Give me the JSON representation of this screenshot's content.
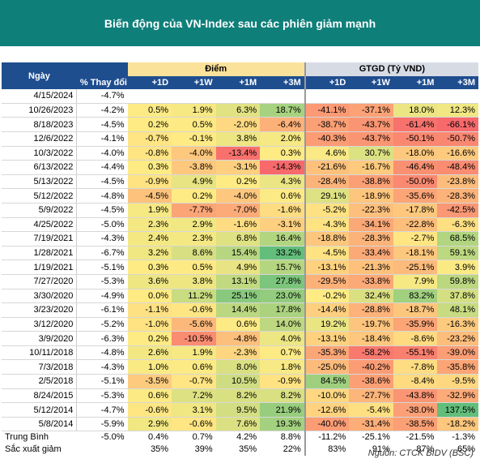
{
  "title": "Biến động của VN-Index sau các phiên giảm mạnh",
  "headers": {
    "date": "Ngày",
    "change": "% Thay đổi",
    "points_group": "Điểm",
    "value_group": "GTGD (Tỷ VND)",
    "periods": [
      "+1D",
      "+1W",
      "+1M",
      "+3M"
    ]
  },
  "rows": [
    {
      "date": "4/15/2024",
      "chg": "-4.7%",
      "p": [
        "",
        "",
        "",
        ""
      ],
      "v": [
        "",
        "",
        "",
        ""
      ]
    },
    {
      "date": "10/26/2023",
      "chg": "-4.2%",
      "p": [
        "0.5%",
        "1.9%",
        "6.3%",
        "18.7%"
      ],
      "v": [
        "-41.1%",
        "-37.1%",
        "18.0%",
        "12.3%"
      ]
    },
    {
      "date": "8/18/2023",
      "chg": "-4.5%",
      "p": [
        "0.2%",
        "0.5%",
        "-2.0%",
        "-6.4%"
      ],
      "v": [
        "-38.7%",
        "-43.7%",
        "-61.4%",
        "-66.1%"
      ]
    },
    {
      "date": "12/6/2022",
      "chg": "-4.1%",
      "p": [
        "-0.7%",
        "-0.1%",
        "3.8%",
        "2.0%"
      ],
      "v": [
        "-40.3%",
        "-43.7%",
        "-50.1%",
        "-50.7%"
      ]
    },
    {
      "date": "10/3/2022",
      "chg": "-4.0%",
      "p": [
        "-0.8%",
        "-4.0%",
        "-13.4%",
        "0.3%"
      ],
      "v": [
        "4.6%",
        "30.7%",
        "-18.0%",
        "-16.6%"
      ]
    },
    {
      "date": "6/13/2022",
      "chg": "-4.4%",
      "p": [
        "0.3%",
        "-3.8%",
        "-3.1%",
        "-14.3%"
      ],
      "v": [
        "-21.6%",
        "-16.7%",
        "-46.4%",
        "-48.4%"
      ]
    },
    {
      "date": "5/13/2022",
      "chg": "-4.5%",
      "p": [
        "-0.9%",
        "4.9%",
        "0.2%",
        "4.3%"
      ],
      "v": [
        "-28.4%",
        "-38.8%",
        "-50.0%",
        "-23.8%"
      ]
    },
    {
      "date": "5/12/2022",
      "chg": "-4.8%",
      "p": [
        "-4.5%",
        "0.2%",
        "-4.0%",
        "0.6%"
      ],
      "v": [
        "29.1%",
        "-18.9%",
        "-35.6%",
        "-28.3%"
      ]
    },
    {
      "date": "5/9/2022",
      "chg": "-4.5%",
      "p": [
        "1.9%",
        "-7.7%",
        "-7.0%",
        "-1.6%"
      ],
      "v": [
        "-5.2%",
        "-22.3%",
        "-17.8%",
        "-42.5%"
      ]
    },
    {
      "date": "4/25/2022",
      "chg": "-5.0%",
      "p": [
        "2.3%",
        "2.9%",
        "-1.6%",
        "-3.1%"
      ],
      "v": [
        "-4.3%",
        "-34.1%",
        "-22.8%",
        "-6.3%"
      ]
    },
    {
      "date": "7/19/2021",
      "chg": "-4.3%",
      "p": [
        "2.4%",
        "2.3%",
        "6.8%",
        "16.4%"
      ],
      "v": [
        "-18.8%",
        "-28.3%",
        "-2.7%",
        "68.5%"
      ]
    },
    {
      "date": "1/28/2021",
      "chg": "-6.7%",
      "p": [
        "3.2%",
        "8.6%",
        "15.4%",
        "33.2%"
      ],
      "v": [
        "-4.5%",
        "-33.4%",
        "-18.1%",
        "59.1%"
      ]
    },
    {
      "date": "1/19/2021",
      "chg": "-5.1%",
      "p": [
        "0.3%",
        "0.5%",
        "4.9%",
        "15.7%"
      ],
      "v": [
        "-13.1%",
        "-21.3%",
        "-25.1%",
        "3.9%"
      ]
    },
    {
      "date": "7/27/2020",
      "chg": "-5.3%",
      "p": [
        "3.6%",
        "3.8%",
        "13.1%",
        "27.8%"
      ],
      "v": [
        "-29.5%",
        "-33.8%",
        "7.9%",
        "59.8%"
      ]
    },
    {
      "date": "3/30/2020",
      "chg": "-4.9%",
      "p": [
        "0.0%",
        "11.2%",
        "25.1%",
        "23.0%"
      ],
      "v": [
        "-0.2%",
        "32.4%",
        "83.2%",
        "37.8%"
      ]
    },
    {
      "date": "3/23/2020",
      "chg": "-6.1%",
      "p": [
        "-1.1%",
        "-0.6%",
        "14.4%",
        "17.8%"
      ],
      "v": [
        "-14.4%",
        "-28.8%",
        "-18.7%",
        "48.1%"
      ]
    },
    {
      "date": "3/12/2020",
      "chg": "-5.2%",
      "p": [
        "-1.0%",
        "-5.6%",
        "0.6%",
        "14.0%"
      ],
      "v": [
        "19.2%",
        "-19.7%",
        "-35.9%",
        "-16.3%"
      ]
    },
    {
      "date": "3/9/2020",
      "chg": "-6.3%",
      "p": [
        "0.2%",
        "-10.5%",
        "-4.8%",
        "4.0%"
      ],
      "v": [
        "-13.1%",
        "-18.4%",
        "-8.6%",
        "-23.2%"
      ]
    },
    {
      "date": "10/11/2018",
      "chg": "-4.8%",
      "p": [
        "2.6%",
        "1.9%",
        "-2.3%",
        "0.7%"
      ],
      "v": [
        "-35.3%",
        "-58.2%",
        "-55.1%",
        "-39.0%"
      ]
    },
    {
      "date": "7/3/2018",
      "chg": "-4.3%",
      "p": [
        "1.0%",
        "0.6%",
        "8.0%",
        "1.8%"
      ],
      "v": [
        "-25.0%",
        "-40.2%",
        "-7.8%",
        "-35.8%"
      ]
    },
    {
      "date": "2/5/2018",
      "chg": "-5.1%",
      "p": [
        "-3.5%",
        "-0.7%",
        "10.5%",
        "-0.9%"
      ],
      "v": [
        "84.5%",
        "-38.6%",
        "-8.4%",
        "-9.5%"
      ]
    },
    {
      "date": "8/24/2015",
      "chg": "-5.3%",
      "p": [
        "0.6%",
        "7.2%",
        "8.2%",
        "8.2%"
      ],
      "v": [
        "-10.0%",
        "-27.7%",
        "-43.8%",
        "-32.9%"
      ]
    },
    {
      "date": "5/12/2014",
      "chg": "-4.7%",
      "p": [
        "-0.6%",
        "3.1%",
        "9.5%",
        "21.9%"
      ],
      "v": [
        "-12.6%",
        "-5.4%",
        "-38.0%",
        "137.5%"
      ]
    },
    {
      "date": "5/8/2014",
      "chg": "-5.9%",
      "p": [
        "2.9%",
        "-0.6%",
        "7.6%",
        "19.3%"
      ],
      "v": [
        "-40.0%",
        "-31.4%",
        "-38.5%",
        "-18.2%"
      ]
    }
  ],
  "footer_rows": [
    {
      "label": "Trung Bình",
      "chg": "-5.0%",
      "p": [
        "0.4%",
        "0.7%",
        "4.2%",
        "8.8%"
      ],
      "v": [
        "-11.2%",
        "-25.1%",
        "-21.5%",
        "-1.3%"
      ]
    },
    {
      "label": "Sắc xuất giảm",
      "chg": "",
      "p": [
        "35%",
        "39%",
        "35%",
        "22%"
      ],
      "v": [
        "83%",
        "91%",
        "87%",
        "65%"
      ]
    }
  ],
  "source": "Nguồn: CTCK BIDV (BSC)",
  "colors": {
    "banner": "#0f7f7a",
    "header_dark": "#1f4e8f",
    "header_points": "#fbe29a",
    "header_value": "#d7dbe4",
    "scale_low": "#f8696b",
    "scale_mid": "#ffeb84",
    "scale_high": "#63be7b"
  }
}
